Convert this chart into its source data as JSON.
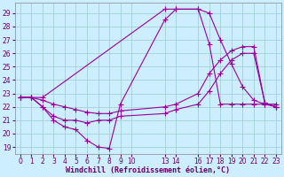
{
  "xlabel": "Windchill (Refroidissement éolien,°C)",
  "background_color": "#cceeff",
  "grid_color": "#99cccc",
  "line_color": "#990099",
  "xlim": [
    -0.5,
    23.5
  ],
  "ylim": [
    18.5,
    29.8
  ],
  "yticks": [
    19,
    20,
    21,
    22,
    23,
    24,
    25,
    26,
    27,
    28,
    29
  ],
  "xtick_positions": [
    0,
    1,
    2,
    3,
    4,
    5,
    6,
    7,
    8,
    9,
    10,
    13,
    14,
    16,
    17,
    18,
    19,
    20,
    21,
    22,
    23
  ],
  "xtick_labels": [
    "0",
    "1",
    "2",
    "3",
    "4",
    "5",
    "6",
    "7",
    "8",
    "9",
    "10",
    "13",
    "14",
    "16",
    "17",
    "18",
    "19",
    "20",
    "21",
    "22",
    "23"
  ],
  "line1_x": [
    0,
    1,
    2,
    13,
    14,
    16,
    17,
    18,
    19,
    20,
    21,
    22,
    23
  ],
  "line1_y": [
    22.7,
    22.7,
    22.7,
    29.3,
    29.3,
    29.3,
    26.7,
    22.2,
    22.2,
    22.2,
    22.2,
    22.2,
    22.2
  ],
  "line2_x": [
    0,
    1,
    2,
    3,
    4,
    5,
    6,
    7,
    8,
    9,
    13,
    14,
    16,
    17,
    18,
    19,
    20,
    21,
    22,
    23
  ],
  "line2_y": [
    22.7,
    22.7,
    22.0,
    21.0,
    20.5,
    20.3,
    19.5,
    19.0,
    18.9,
    22.2,
    28.5,
    29.3,
    29.3,
    29.0,
    27.0,
    25.2,
    23.5,
    22.5,
    22.2,
    22.0
  ],
  "line3_x": [
    0,
    1,
    2,
    3,
    4,
    5,
    6,
    7,
    8,
    9,
    13,
    14,
    16,
    17,
    18,
    19,
    20,
    21,
    22,
    23
  ],
  "line3_y": [
    22.7,
    22.7,
    22.0,
    21.3,
    21.0,
    21.0,
    20.8,
    21.0,
    21.0,
    21.3,
    21.5,
    21.8,
    22.2,
    23.2,
    24.5,
    25.5,
    26.0,
    26.0,
    22.3,
    22.0
  ],
  "line4_x": [
    0,
    1,
    2,
    3,
    4,
    5,
    6,
    7,
    8,
    9,
    13,
    14,
    16,
    17,
    18,
    19,
    20,
    21,
    22,
    23
  ],
  "line4_y": [
    22.7,
    22.7,
    22.5,
    22.2,
    22.0,
    21.8,
    21.6,
    21.5,
    21.5,
    21.7,
    22.0,
    22.2,
    23.0,
    24.5,
    25.5,
    26.2,
    26.5,
    26.5,
    22.3,
    22.0
  ]
}
